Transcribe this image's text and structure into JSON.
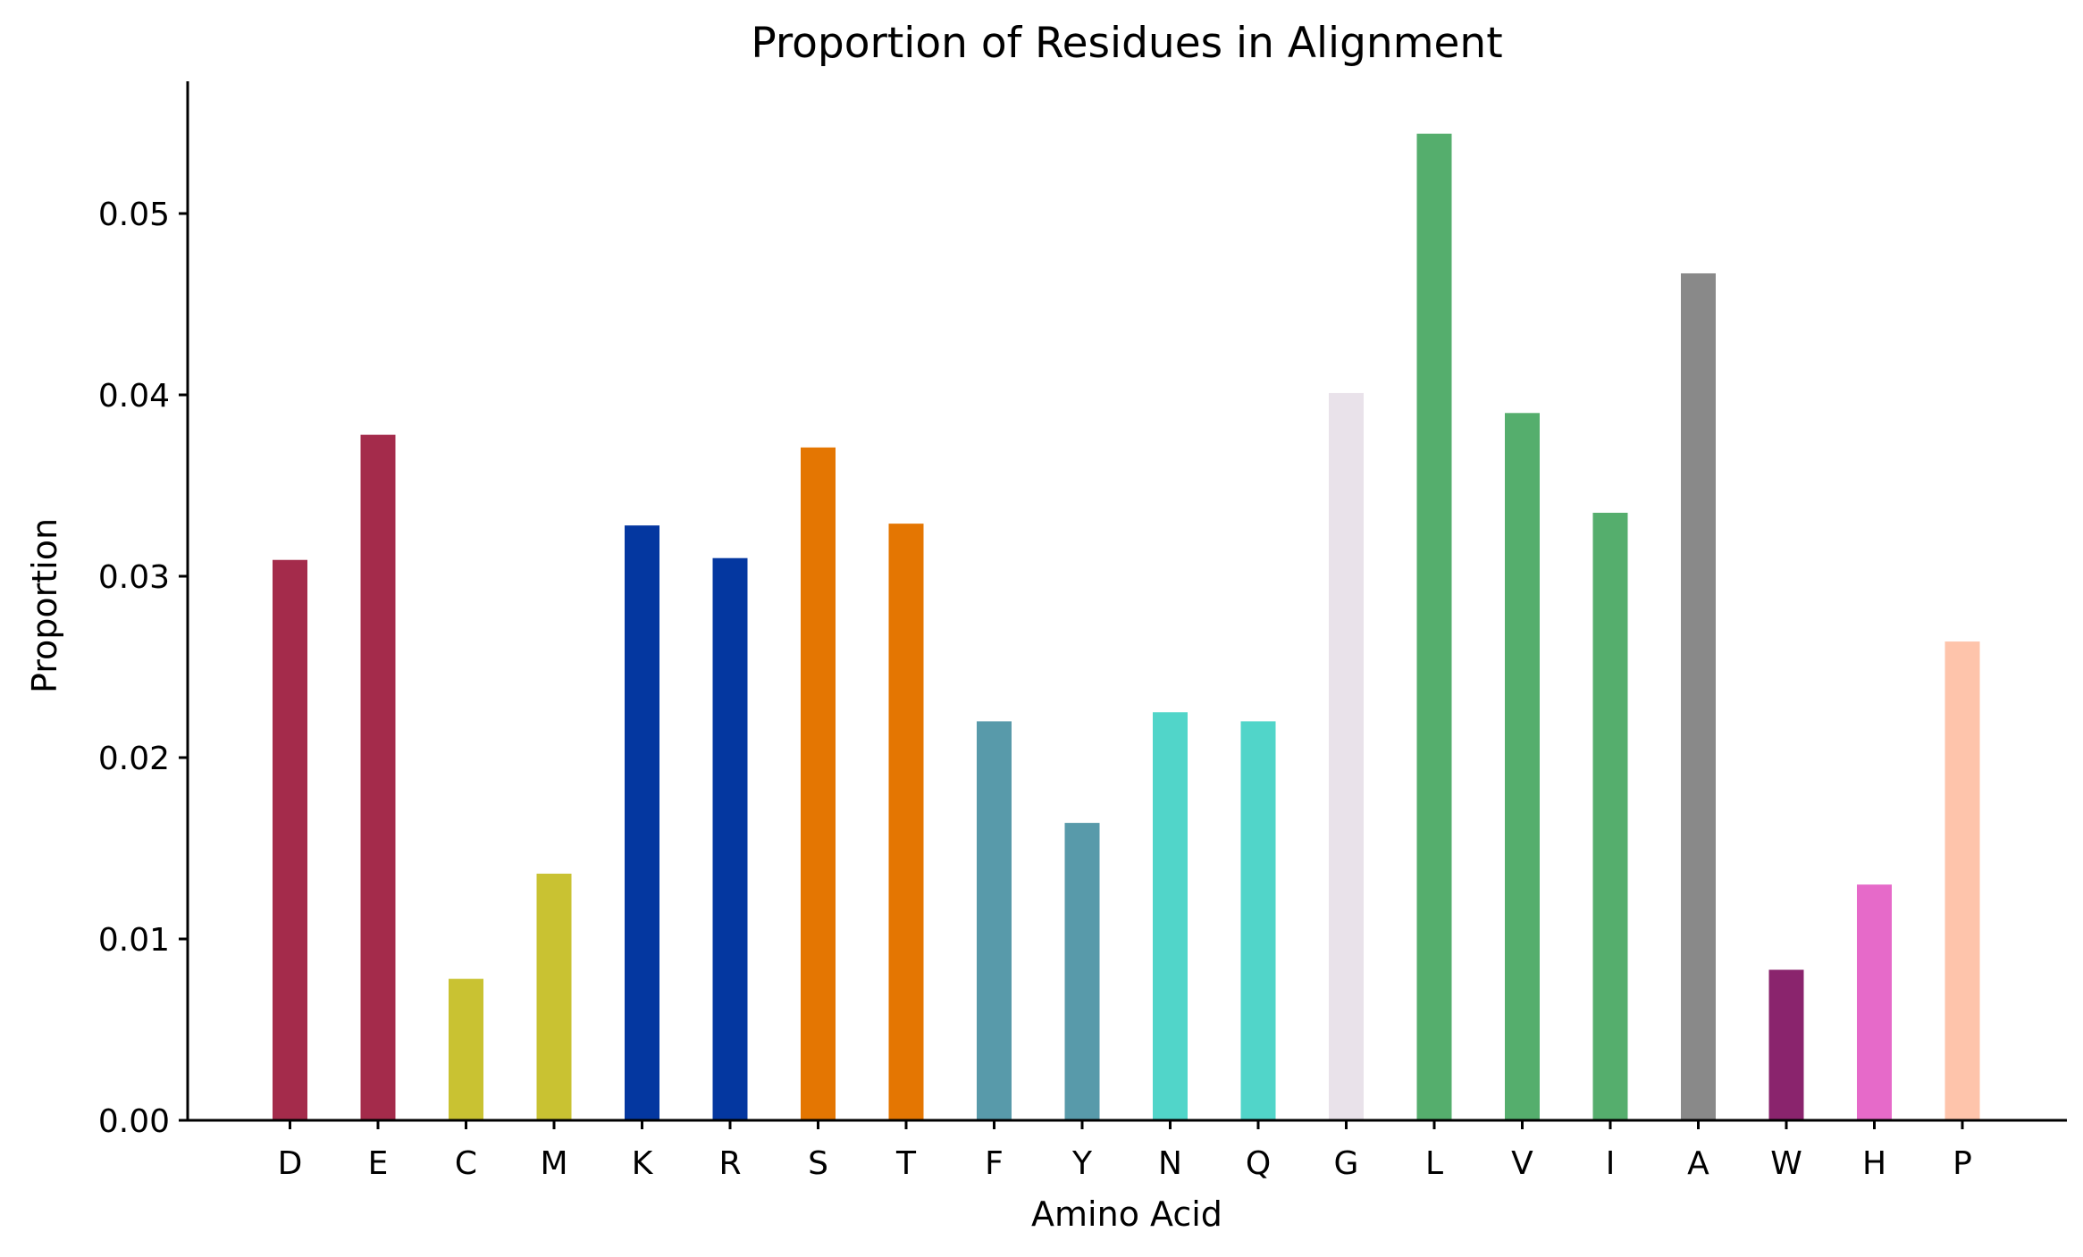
{
  "chart_data": {
    "type": "bar",
    "title": "Proportion of Residues in Alignment",
    "xlabel": "Amino Acid",
    "ylabel": "Proportion",
    "ylim": [
      0,
      0.057
    ],
    "yticks": [
      "0.00",
      "0.01",
      "0.02",
      "0.03",
      "0.04",
      "0.05"
    ],
    "grid": false,
    "categories": [
      "D",
      "E",
      "C",
      "M",
      "K",
      "R",
      "S",
      "T",
      "F",
      "Y",
      "N",
      "Q",
      "G",
      "L",
      "V",
      "I",
      "A",
      "W",
      "H",
      "P"
    ],
    "values": [
      0.0309,
      0.0378,
      0.0078,
      0.0136,
      0.0328,
      0.031,
      0.0371,
      0.0329,
      0.022,
      0.0164,
      0.0225,
      0.022,
      0.0401,
      0.0544,
      0.039,
      0.0335,
      0.0467,
      0.0083,
      0.013,
      0.0264
    ],
    "colors": [
      "#a42b4b",
      "#a42b4b",
      "#c9c232",
      "#c9c232",
      "#0437a0",
      "#0437a0",
      "#e47602",
      "#e47602",
      "#589aaa",
      "#589aaa",
      "#51d5c9",
      "#51d5c9",
      "#e9e2ea",
      "#55ae6d",
      "#55ae6d",
      "#55ae6d",
      "#898989",
      "#8a246d",
      "#e66ac9",
      "#fec4ab"
    ]
  }
}
